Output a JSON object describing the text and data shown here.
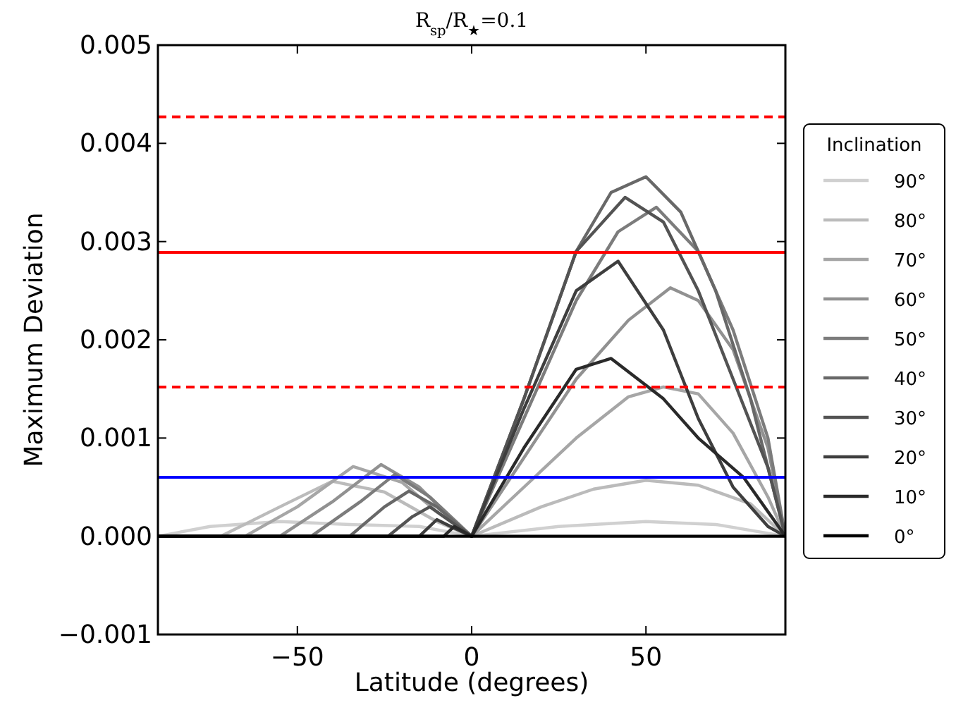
{
  "chart_data": {
    "type": "line",
    "title": "R$_{sp}$/R$_{★}$=0.1",
    "xlabel": "Latitude (degrees)",
    "ylabel": "Maximum Deviation",
    "legend_title": "Inclination",
    "legend": "right",
    "grid": false,
    "xlim": [
      -90,
      90
    ],
    "xticks": [
      -50,
      0,
      50
    ],
    "ylim": [
      -0.001,
      0.005
    ],
    "yticks": [
      {
        "value": -0.001,
        "label": "−0.001"
      },
      {
        "value": 0,
        "label": "0.000"
      },
      {
        "value": 0.001,
        "label": "0.001"
      },
      {
        "value": 0.002,
        "label": "0.002"
      },
      {
        "value": 0.003,
        "label": "0.003"
      },
      {
        "value": 0.004,
        "label": "0.004"
      },
      {
        "value": 0.005,
        "label": "0.005"
      }
    ],
    "series": [
      {
        "name": "90°",
        "color": "#d0d0d0",
        "x": [
          -90,
          -75,
          -55,
          -35,
          -15,
          0,
          25,
          50,
          70,
          90
        ],
        "values": [
          0,
          0.0001,
          0.00015,
          0.00012,
          0.0001,
          0,
          0.0001,
          0.00015,
          0.00012,
          0
        ]
      },
      {
        "name": "80°",
        "color": "#bbbbbb",
        "x": [
          -90,
          -72,
          -55,
          -40,
          -25,
          -10,
          0,
          20,
          35,
          50,
          65,
          80,
          90
        ],
        "values": [
          0,
          0,
          0.0003,
          0.00056,
          0.00045,
          0.00015,
          0,
          0.0003,
          0.00048,
          0.00057,
          0.00052,
          0.00033,
          0
        ]
      },
      {
        "name": "70°",
        "color": "#a6a6a6",
        "x": [
          -90,
          -65,
          -50,
          -34,
          -20,
          -10,
          0,
          15,
          30,
          45,
          55,
          65,
          75,
          85,
          90
        ],
        "values": [
          0,
          0,
          0.0003,
          0.00071,
          0.00055,
          0.00025,
          0,
          0.0005,
          0.001,
          0.00142,
          0.00152,
          0.00145,
          0.00105,
          0.0004,
          0
        ]
      },
      {
        "name": "60°",
        "color": "#919191",
        "x": [
          -90,
          -55,
          -40,
          -26,
          -15,
          -5,
          0,
          15,
          30,
          45,
          57,
          65,
          75,
          85,
          90
        ],
        "values": [
          0,
          0,
          0.00035,
          0.00073,
          0.0005,
          0.00015,
          0,
          0.0008,
          0.0016,
          0.0022,
          0.00253,
          0.0024,
          0.0019,
          0.0009,
          0
        ]
      },
      {
        "name": "50°",
        "color": "#7c7c7c",
        "x": [
          -90,
          -46,
          -32,
          -22,
          -12,
          0,
          15,
          30,
          42,
          53,
          65,
          75,
          85,
          90
        ],
        "values": [
          0,
          0,
          0.00035,
          0.00063,
          0.0004,
          0,
          0.0012,
          0.0024,
          0.0031,
          0.00335,
          0.0029,
          0.0021,
          0.001,
          0
        ]
      },
      {
        "name": "40°",
        "color": "#686868",
        "x": [
          -90,
          -35,
          -25,
          -18,
          -10,
          0,
          15,
          30,
          40,
          50,
          60,
          70,
          80,
          90
        ],
        "values": [
          0,
          0,
          0.0003,
          0.00046,
          0.0003,
          0,
          0.0014,
          0.0029,
          0.0035,
          0.00366,
          0.0033,
          0.0025,
          0.0014,
          0
        ]
      },
      {
        "name": "30°",
        "color": "#535353",
        "x": [
          -90,
          -24,
          -17,
          -12,
          -6,
          0,
          15,
          30,
          44,
          55,
          65,
          75,
          85,
          90
        ],
        "values": [
          0,
          0,
          0.0002,
          0.0003,
          0.00015,
          0,
          0.0014,
          0.0029,
          0.00345,
          0.0032,
          0.0025,
          0.0016,
          0.0007,
          0
        ]
      },
      {
        "name": "20°",
        "color": "#3e3e3e",
        "x": [
          -90,
          -15,
          -10,
          -6,
          0,
          15,
          30,
          42,
          55,
          65,
          75,
          85,
          90
        ],
        "values": [
          0,
          0,
          0.00017,
          0.0001,
          0,
          0.0013,
          0.0025,
          0.0028,
          0.0021,
          0.0012,
          0.0005,
          0.0001,
          0
        ]
      },
      {
        "name": "10°",
        "color": "#2a2a2a",
        "x": [
          -90,
          -8,
          -5,
          0,
          15,
          30,
          40,
          55,
          65,
          78,
          90
        ],
        "values": [
          0,
          0,
          0.0001,
          0,
          0.0009,
          0.0017,
          0.00181,
          0.0014,
          0.001,
          0.0006,
          0
        ]
      },
      {
        "name": "0°",
        "color": "#000000",
        "x": [
          -90,
          90
        ],
        "values": [
          0,
          0
        ]
      }
    ],
    "ref_lines": [
      {
        "axis": "y",
        "value": 0.00427,
        "color": "#ff0000",
        "line_style": "dashed"
      },
      {
        "axis": "y",
        "value": 0.00289,
        "color": "#ff0000",
        "line_style": "solid"
      },
      {
        "axis": "y",
        "value": 0.00152,
        "color": "#ff0000",
        "line_style": "dashed"
      },
      {
        "axis": "y",
        "value": 0.0006,
        "color": "#0000ff",
        "line_style": "solid"
      }
    ]
  }
}
